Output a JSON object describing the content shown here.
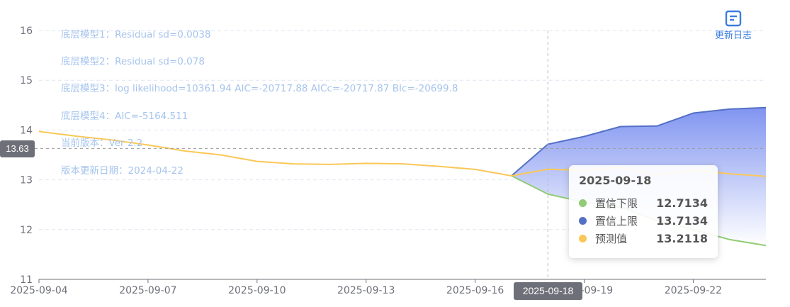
{
  "annotations": {
    "line1": "底层模型1：Residual sd=0.0038",
    "line2": "底层模型2：Residual sd=0.078",
    "line3": "底层模型3：log likelihood=10361.94 AIC=-20717.88 AICc=-20717.87 BIc=-20699.8",
    "line4": "底层模型4：AIC=-5164.511",
    "line5": "当前版本：Ver 2.2",
    "line6": "版本更新日期：2024-04-22"
  },
  "toolbar": {
    "update_log_label": "更新日志",
    "update_log_icon": "document-icon"
  },
  "axis_pointer": {
    "y_value": "13.63",
    "x_value": "2025-09-18"
  },
  "tooltip": {
    "date": "2025-09-18",
    "rows": [
      {
        "name": "置信下限",
        "value": "12.7134",
        "color": "#91cc75"
      },
      {
        "name": "置信上限",
        "value": "13.7134",
        "color": "#5470c6"
      },
      {
        "name": "预测值",
        "value": "13.2118",
        "color": "#fac858"
      }
    ]
  },
  "chart_data": {
    "type": "line",
    "x": [
      "2025-09-04",
      "2025-09-05",
      "2025-09-06",
      "2025-09-07",
      "2025-09-08",
      "2025-09-09",
      "2025-09-10",
      "2025-09-11",
      "2025-09-12",
      "2025-09-13",
      "2025-09-14",
      "2025-09-15",
      "2025-09-16",
      "2025-09-17",
      "2025-09-18",
      "2025-09-19",
      "2025-09-20",
      "2025-09-21",
      "2025-09-22",
      "2025-09-23",
      "2025-09-24"
    ],
    "x_tick_labels": [
      "2025-09-04",
      "2025-09-07",
      "2025-09-10",
      "2025-09-13",
      "2025-09-16",
      "2025-09-19",
      "2025-09-22"
    ],
    "ylim": [
      11,
      16
    ],
    "y_ticks": [
      11,
      12,
      13,
      14,
      15,
      16
    ],
    "grid": true,
    "series": [
      {
        "name": "预测值",
        "color": "#fac858",
        "values": [
          13.97,
          13.88,
          13.8,
          13.7,
          13.58,
          13.5,
          13.37,
          13.32,
          13.31,
          13.33,
          13.32,
          13.27,
          13.21,
          13.08,
          13.2118,
          13.19,
          13.25,
          13.1,
          13.2,
          13.12,
          13.07
        ]
      },
      {
        "name": "置信下限",
        "color": "#91cc75",
        "values": [
          null,
          null,
          null,
          null,
          null,
          null,
          null,
          null,
          null,
          null,
          null,
          null,
          null,
          13.08,
          12.7134,
          12.55,
          12.45,
          12.18,
          12.0,
          11.8,
          11.68
        ]
      },
      {
        "name": "置信上限",
        "color": "#5470c6",
        "values": [
          null,
          null,
          null,
          null,
          null,
          null,
          null,
          null,
          null,
          null,
          null,
          null,
          null,
          13.08,
          13.7134,
          13.87,
          14.07,
          14.08,
          14.34,
          14.42,
          14.45
        ]
      }
    ]
  }
}
